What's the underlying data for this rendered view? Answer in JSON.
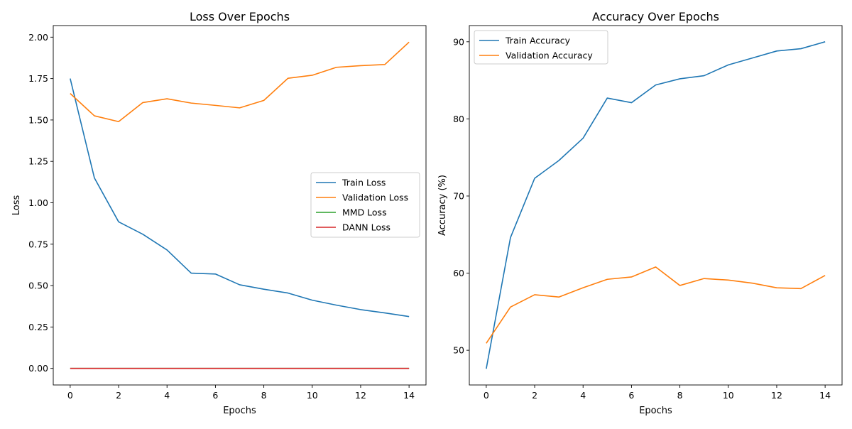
{
  "chart_data": [
    {
      "type": "line",
      "title": "Loss Over Epochs",
      "xlabel": "Epochs",
      "ylabel": "Loss",
      "xlim": [
        -0.7,
        14.7
      ],
      "ylim": [
        -0.1,
        2.07
      ],
      "xticks": [
        0,
        2,
        4,
        6,
        8,
        10,
        12,
        14
      ],
      "xtick_labels": [
        "0",
        "2",
        "4",
        "6",
        "8",
        "10",
        "12",
        "14"
      ],
      "yticks": [
        0.0,
        0.25,
        0.5,
        0.75,
        1.0,
        1.25,
        1.5,
        1.75,
        2.0
      ],
      "ytick_labels": [
        "0.00",
        "0.25",
        "0.50",
        "0.75",
        "1.00",
        "1.25",
        "1.50",
        "1.75",
        "2.00"
      ],
      "grid": false,
      "legend_position": "center-right",
      "x": [
        0,
        1,
        2,
        3,
        4,
        5,
        6,
        7,
        8,
        9,
        10,
        11,
        12,
        13,
        14
      ],
      "series": [
        {
          "name": "Train Loss",
          "color": "#1f77b4",
          "values": [
            1.75,
            1.15,
            0.885,
            0.81,
            0.715,
            0.575,
            0.57,
            0.505,
            0.478,
            0.455,
            0.412,
            0.382,
            0.355,
            0.335,
            0.313
          ]
        },
        {
          "name": "Validation Loss",
          "color": "#ff7f0e",
          "values": [
            1.66,
            1.525,
            1.49,
            1.605,
            1.628,
            1.602,
            1.588,
            1.573,
            1.618,
            1.752,
            1.77,
            1.818,
            1.828,
            1.835,
            1.97
          ]
        },
        {
          "name": "MMD Loss",
          "color": "#2ca02c",
          "values": [
            0,
            0,
            0,
            0,
            0,
            0,
            0,
            0,
            0,
            0,
            0,
            0,
            0,
            0,
            0
          ]
        },
        {
          "name": "DANN Loss",
          "color": "#d62728",
          "values": [
            0,
            0,
            0,
            0,
            0,
            0,
            0,
            0,
            0,
            0,
            0,
            0,
            0,
            0,
            0
          ]
        }
      ]
    },
    {
      "type": "line",
      "title": "Accuracy Over Epochs",
      "xlabel": "Epochs",
      "ylabel": "Accuracy (%)",
      "xlim": [
        -0.7,
        14.7
      ],
      "ylim": [
        45.5,
        92.1
      ],
      "xticks": [
        0,
        2,
        4,
        6,
        8,
        10,
        12,
        14
      ],
      "xtick_labels": [
        "0",
        "2",
        "4",
        "6",
        "8",
        "10",
        "12",
        "14"
      ],
      "yticks": [
        50,
        60,
        70,
        80,
        90
      ],
      "ytick_labels": [
        "50",
        "60",
        "70",
        "80",
        "90"
      ],
      "grid": false,
      "legend_position": "top-left",
      "x": [
        0,
        1,
        2,
        3,
        4,
        5,
        6,
        7,
        8,
        9,
        10,
        11,
        12,
        13,
        14
      ],
      "series": [
        {
          "name": "Train Accuracy",
          "color": "#1f77b4",
          "values": [
            47.6,
            64.6,
            72.3,
            74.6,
            77.5,
            82.7,
            82.1,
            84.4,
            85.2,
            85.6,
            87.0,
            87.9,
            88.8,
            89.1,
            90.0
          ]
        },
        {
          "name": "Validation Accuracy",
          "color": "#ff7f0e",
          "values": [
            50.9,
            55.6,
            57.2,
            56.9,
            58.1,
            59.2,
            59.5,
            60.8,
            58.4,
            59.3,
            59.1,
            58.7,
            58.1,
            58.0,
            59.7
          ]
        }
      ]
    }
  ]
}
